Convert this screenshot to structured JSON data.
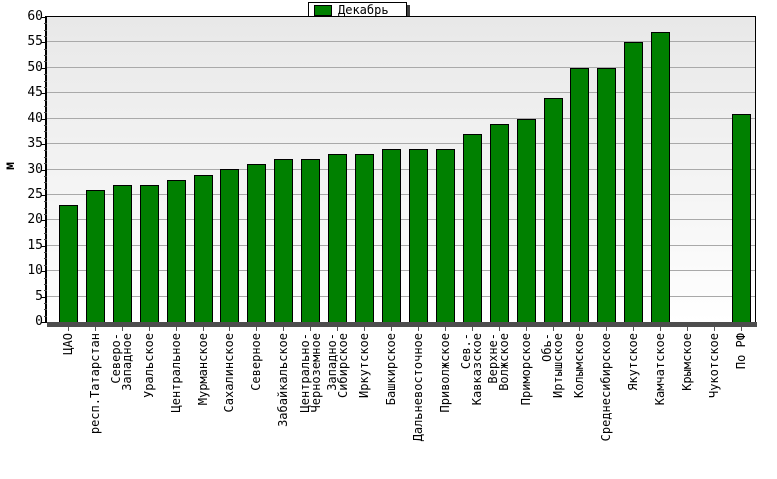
{
  "legend": {
    "label": "Декабрь",
    "swatch_color": "#008000",
    "position": "top-center"
  },
  "y_axis": {
    "title": "м",
    "tick_labels": [
      "60",
      "55",
      "50",
      "45",
      "40",
      "35",
      "30",
      "25",
      "20",
      "15",
      "10",
      "5",
      "0"
    ]
  },
  "colors": {
    "bar_fill": "#008000",
    "bar_border": "#000000",
    "gridline": "#a9a9a9",
    "axis_band": "#4d4d4d",
    "plot_background_top": "#e8e8e8",
    "plot_background_bottom": "#ffffff",
    "frame_border": "#000000",
    "page_background": "#ffffff"
  },
  "chart_data": {
    "type": "bar",
    "title": "",
    "xlabel": "",
    "ylabel": "м",
    "ylim": [
      0,
      60
    ],
    "ytick_step": 5,
    "yminor_per_interval": 3,
    "grid": true,
    "legend_position": "top-center",
    "series": [
      {
        "name": "Декабрь",
        "color": "#008000",
        "values": [
          23,
          26,
          27,
          27,
          28,
          29,
          30,
          31,
          32,
          32,
          33,
          33,
          34,
          34,
          34,
          37,
          39,
          40,
          44,
          50,
          50,
          55,
          57,
          null,
          null,
          41
        ]
      }
    ],
    "categories": [
      [
        "ЦАО"
      ],
      [
        "респ.Татарстан"
      ],
      [
        "Северо-",
        "Западное"
      ],
      [
        "Уральское"
      ],
      [
        "Центральное"
      ],
      [
        "Мурманское"
      ],
      [
        "Сахалинское"
      ],
      [
        "Северное"
      ],
      [
        "Забайкальское"
      ],
      [
        "Центрально-",
        "Черноземное"
      ],
      [
        "Западно-",
        "Сибирское"
      ],
      [
        "Иркутское"
      ],
      [
        "Башкирское"
      ],
      [
        "Дальневосточное"
      ],
      [
        "Приволжское"
      ],
      [
        "Сев.-",
        "Кавказское"
      ],
      [
        "Верхне-",
        "Волжское"
      ],
      [
        "Приморское"
      ],
      [
        "Обь-",
        "Иртышское"
      ],
      [
        "Колымское"
      ],
      [
        "Среднесибирское"
      ],
      [
        "Якутское"
      ],
      [
        "Камчатское"
      ],
      [
        "Крымское"
      ],
      [
        "Чукотское"
      ],
      [
        "По РФ"
      ]
    ]
  }
}
